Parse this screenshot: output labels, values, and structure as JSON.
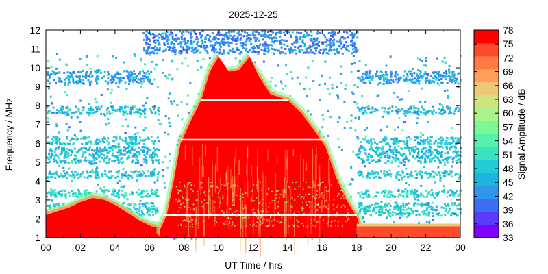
{
  "chart_data": {
    "type": "heatmap",
    "title": "2025-12-25",
    "xlabel": "UT Time / hrs",
    "ylabel": "Frequency / MHz",
    "colorbar_label": "Signal Amplitude / dB",
    "xlim": [
      0,
      24
    ],
    "ylim": [
      1,
      12
    ],
    "x_ticks": [
      "00",
      "02",
      "04",
      "06",
      "08",
      "10",
      "12",
      "14",
      "16",
      "18",
      "20",
      "22",
      "00"
    ],
    "y_ticks": [
      1,
      2,
      3,
      4,
      5,
      6,
      7,
      8,
      9,
      10,
      11,
      12
    ],
    "colorbar_ticks": [
      33,
      36,
      39,
      42,
      45,
      48,
      51,
      54,
      57,
      60,
      63,
      66,
      69,
      72,
      75,
      78
    ],
    "colorbar_range": [
      33,
      78
    ],
    "colorscale": [
      "#8000ff",
      "#5a3cff",
      "#3d6ef5",
      "#2f96ea",
      "#1eb4e0",
      "#22ccd6",
      "#3ae2c2",
      "#56f0ae",
      "#7cf896",
      "#a8f38a",
      "#cfe47f",
      "#edc876",
      "#ffa05a",
      "#ff7a45",
      "#ff4b2c",
      "#ff0000"
    ],
    "regions": [
      {
        "description_level": 78,
        "x": [
          0,
          6.8
        ],
        "y_top": [
          2.2,
          2.4,
          2.6,
          2.9,
          3.1,
          3.0,
          2.7,
          2.3,
          1.9,
          1.6,
          1.5
        ],
        "y_bottom": 1
      },
      {
        "description_level": 78,
        "x": [
          6.6,
          18.2
        ],
        "y_top_profile": [
          [
            6.6,
            1.4
          ],
          [
            7.0,
            2.2
          ],
          [
            7.4,
            4.0
          ],
          [
            7.8,
            6.0
          ],
          [
            8.4,
            7.2
          ],
          [
            9.0,
            8.3
          ],
          [
            9.5,
            9.8
          ],
          [
            10.0,
            10.6
          ],
          [
            10.6,
            9.8
          ],
          [
            11.2,
            9.9
          ],
          [
            11.8,
            10.6
          ],
          [
            12.3,
            9.6
          ],
          [
            13.0,
            8.6
          ],
          [
            14.0,
            8.3
          ],
          [
            14.8,
            7.6
          ],
          [
            15.6,
            6.6
          ],
          [
            16.2,
            5.8
          ],
          [
            16.8,
            4.2
          ],
          [
            17.4,
            3.0
          ],
          [
            18.0,
            2.1
          ],
          [
            18.2,
            1.6
          ]
        ],
        "y_bottom": 1
      },
      {
        "description_level": 75,
        "x": [
          18,
          24
        ],
        "y_top": 1.6,
        "y_bottom": 1
      }
    ],
    "noise_bands": [
      {
        "y": [
          9.2,
          9.9
        ],
        "level": 44,
        "x_ranges": [
          [
            0,
            6
          ],
          [
            18,
            24
          ]
        ]
      },
      {
        "y": [
          7.6,
          8.0
        ],
        "level": 47,
        "x_ranges": [
          [
            0,
            6.5
          ],
          [
            18,
            24
          ]
        ]
      },
      {
        "y": [
          6.0,
          6.4
        ],
        "level": 48,
        "x_ranges": [
          [
            0,
            6.5
          ],
          [
            18,
            24
          ]
        ]
      },
      {
        "y": [
          5.0,
          5.9
        ],
        "level": 47,
        "x_ranges": [
          [
            0,
            6.5
          ],
          [
            18,
            24
          ]
        ]
      },
      {
        "y": [
          4.2,
          4.6
        ],
        "level": 48,
        "x_ranges": [
          [
            0,
            6.5
          ],
          [
            18,
            24
          ]
        ]
      },
      {
        "y": [
          3.2,
          3.6
        ],
        "level": 50,
        "x_ranges": [
          [
            0,
            6.5
          ],
          [
            18,
            24
          ]
        ]
      },
      {
        "y": [
          2.2,
          2.9
        ],
        "level": 49,
        "x_ranges": [
          [
            0,
            6.5
          ],
          [
            18,
            24
          ]
        ]
      },
      {
        "y": [
          10.8,
          12.0
        ],
        "level": 42,
        "x_ranges": [
          [
            5.6,
            18.0
          ]
        ]
      }
    ],
    "gaps": [
      {
        "y": 8.3,
        "x": [
          9.0,
          14.0
        ]
      },
      {
        "y": 6.2,
        "x": [
          7.8,
          16.2
        ]
      },
      {
        "y": 2.2,
        "x": [
          6.8,
          18.0
        ]
      }
    ],
    "grid": false,
    "colorbar_placement": "right"
  }
}
